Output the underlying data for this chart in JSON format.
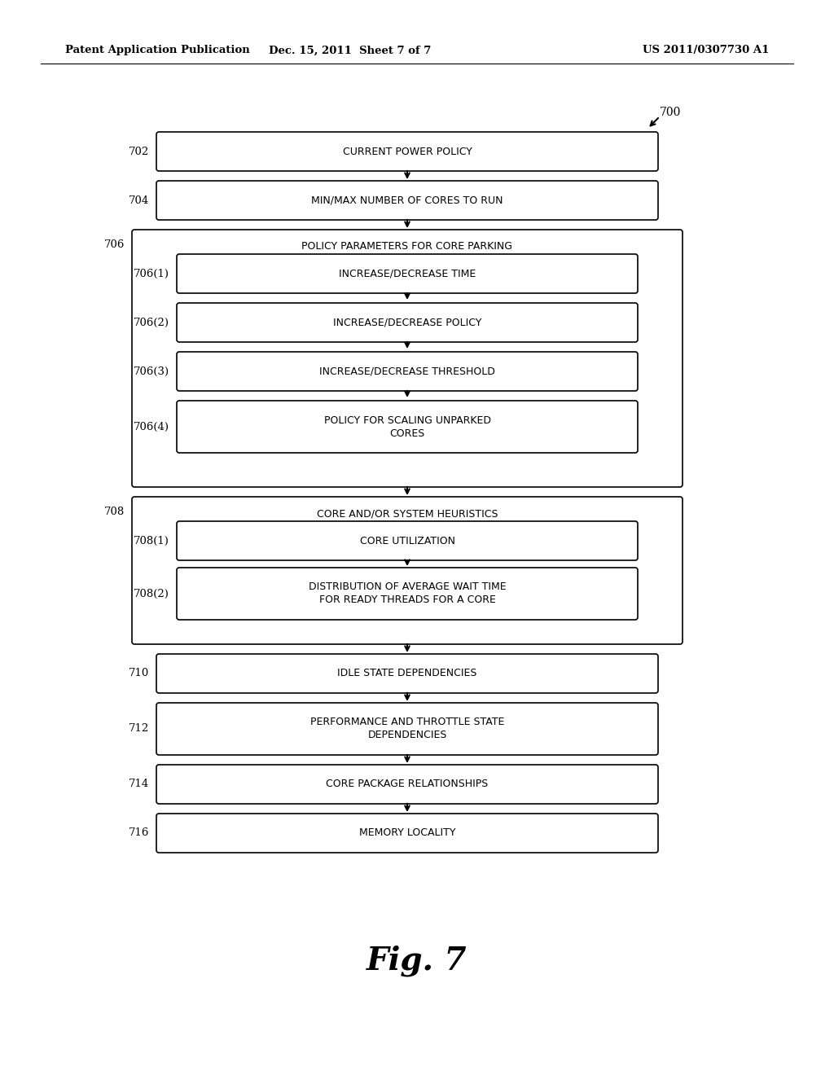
{
  "header_left": "Patent Application Publication",
  "header_center": "Dec. 15, 2011  Sheet 7 of 7",
  "header_right": "US 2011/0307730 A1",
  "figure_label": "Fig. 7",
  "diagram_label": "700",
  "bg_color": "#ffffff",
  "fig_width": 10.24,
  "fig_height": 13.2,
  "dpi": 100
}
